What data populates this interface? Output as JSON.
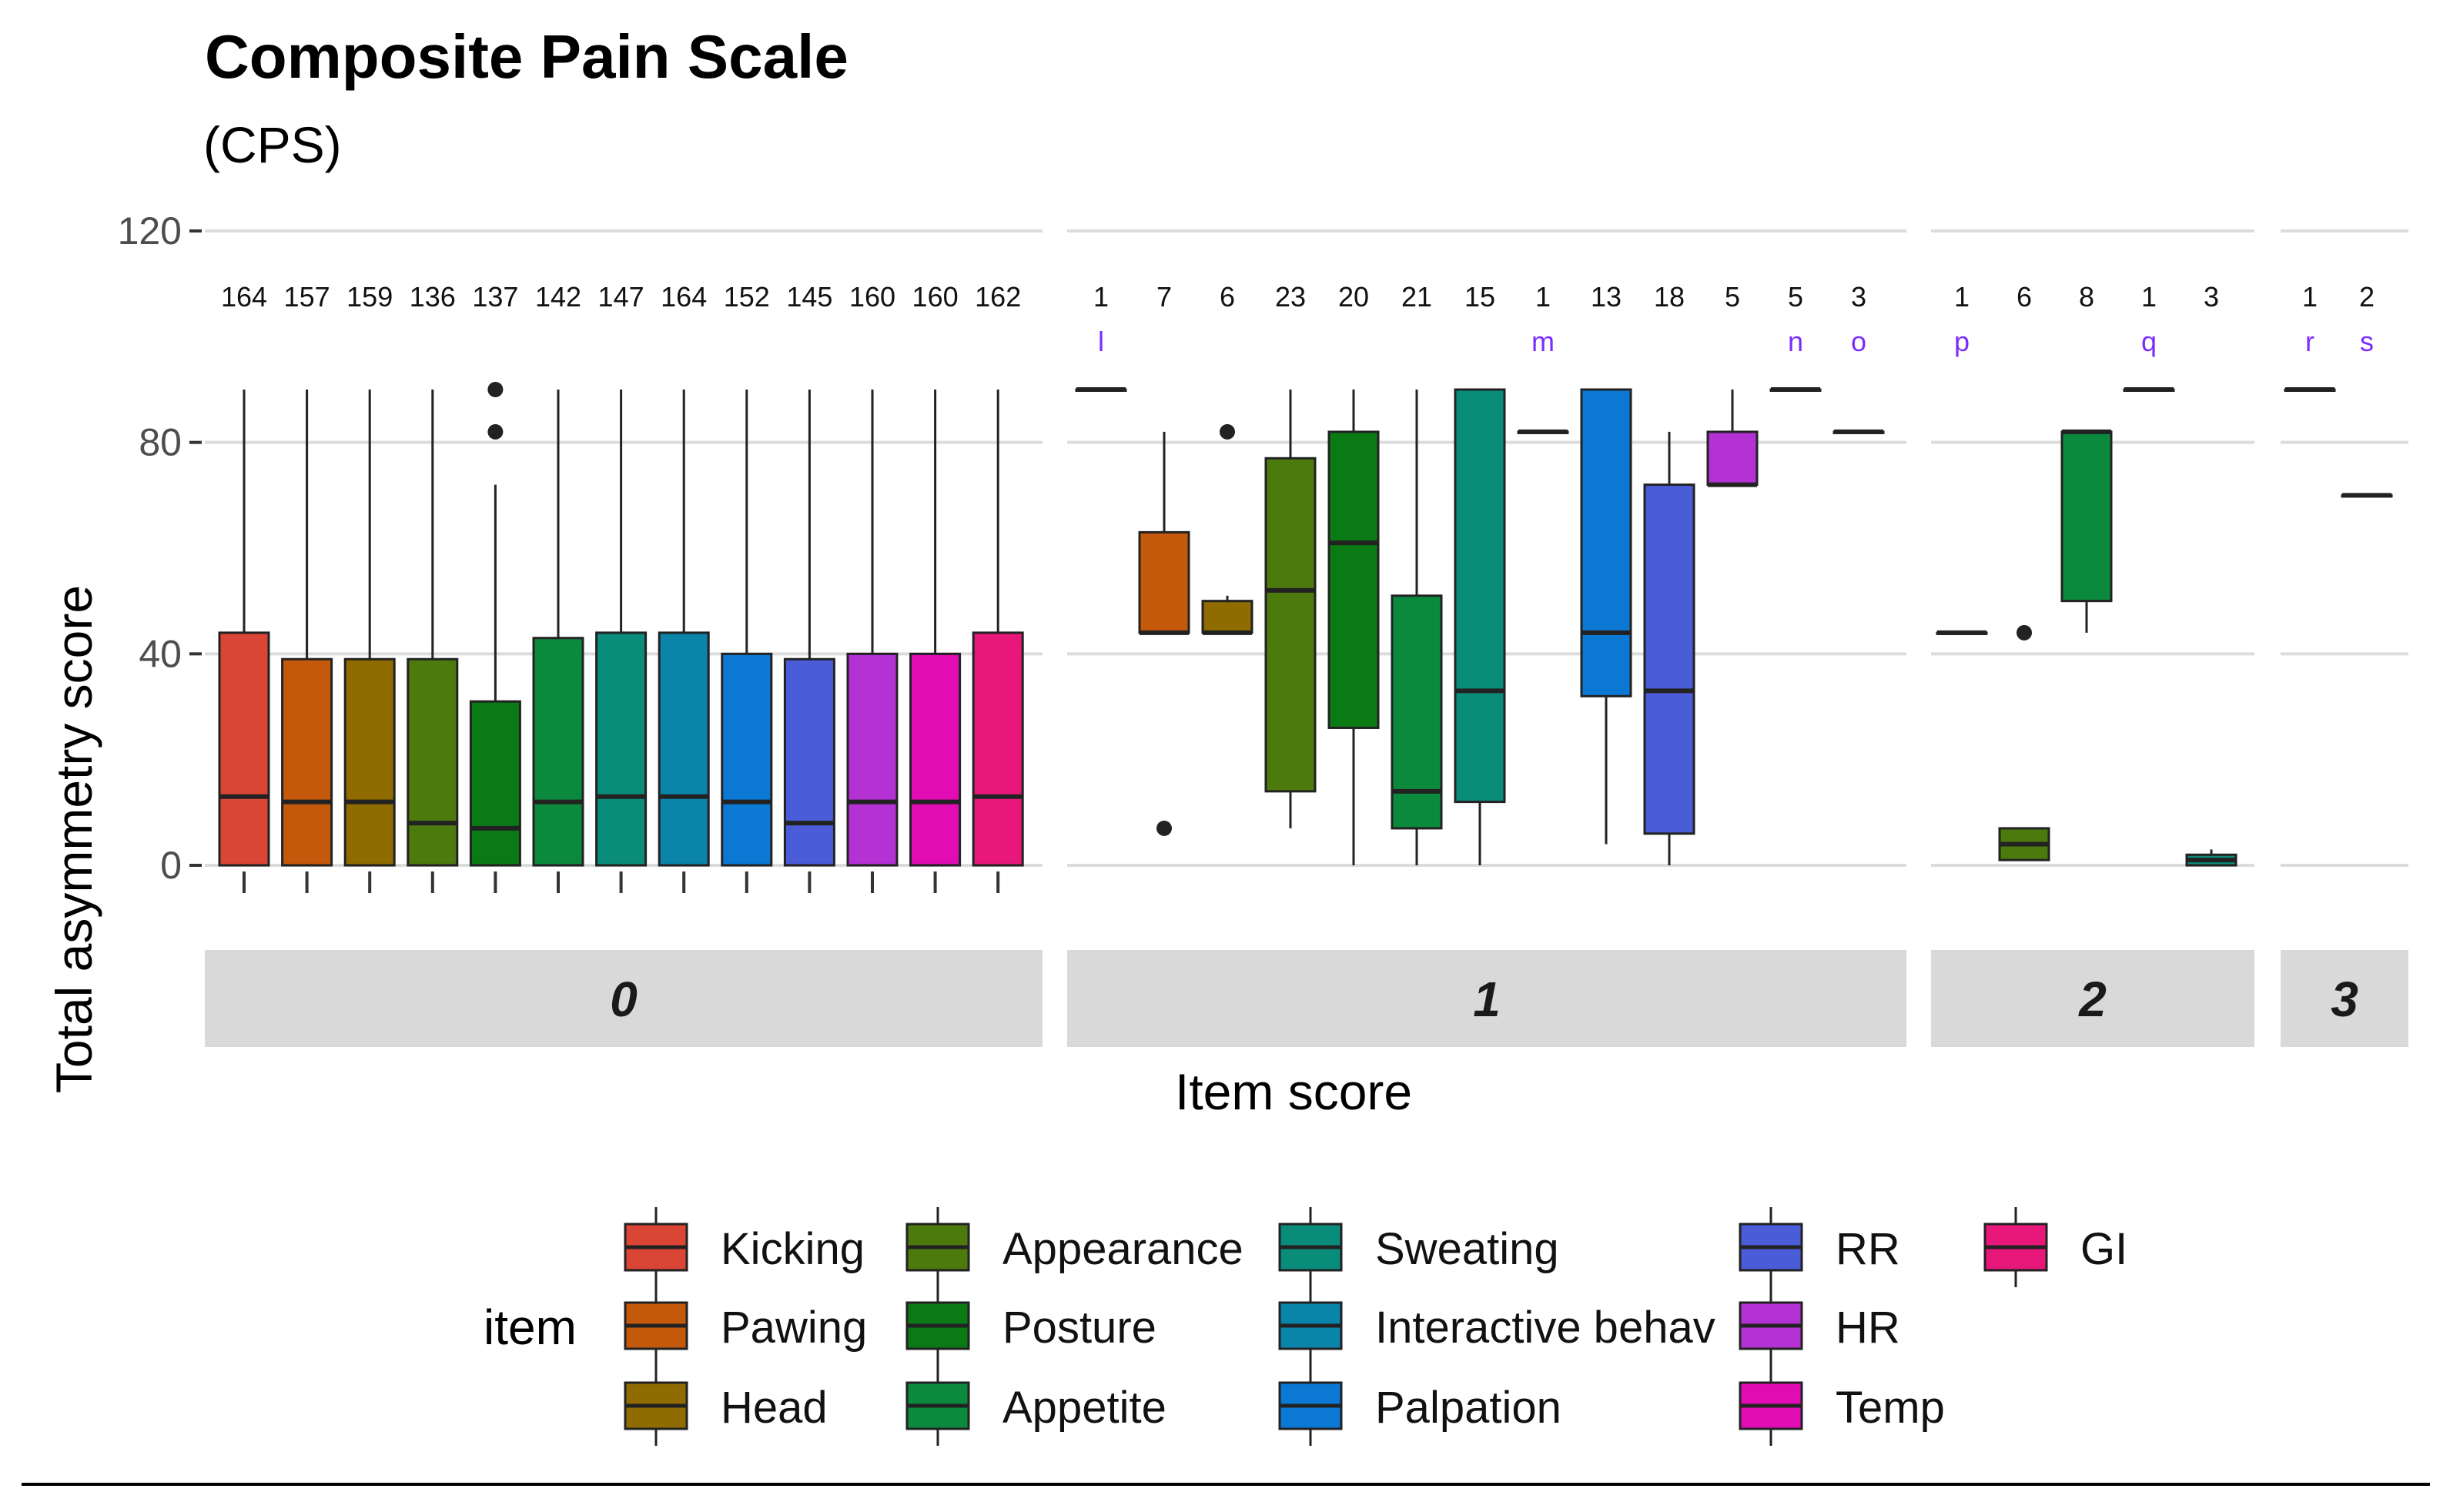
{
  "chart_data": {
    "type": "box",
    "title": "Composite Pain Scale",
    "subtitle": "(CPS)",
    "xlabel": "Item score",
    "ylabel": "Total asymmetry score",
    "ylim": [
      0,
      120
    ],
    "y_ticks": [
      "0",
      "40",
      "80",
      "120"
    ],
    "grid": true,
    "legend": {
      "title": "item",
      "position": "bottom"
    },
    "items": [
      {
        "name": "Kicking",
        "color": "#DB4535"
      },
      {
        "name": "Pawing",
        "color": "#C4590B"
      },
      {
        "name": "Head",
        "color": "#8F6B00"
      },
      {
        "name": "Appearance",
        "color": "#4C7A0C"
      },
      {
        "name": "Posture",
        "color": "#0A7A14"
      },
      {
        "name": "Appetite",
        "color": "#0B8A3D"
      },
      {
        "name": "Sweating",
        "color": "#0A8C7A"
      },
      {
        "name": "Interactive behav",
        "color": "#0A84A8"
      },
      {
        "name": "Palpation",
        "color": "#0B78D4"
      },
      {
        "name": "RR",
        "color": "#4B5CD8"
      },
      {
        "name": "HR",
        "color": "#B431D4"
      },
      {
        "name": "Temp",
        "color": "#E20CB5"
      },
      {
        "name": "GI",
        "color": "#E8177A"
      }
    ],
    "panels": [
      {
        "label": "0",
        "boxes": [
          {
            "item": "Kicking",
            "n": "164",
            "min": 0,
            "q1": 0,
            "median": 13,
            "q3": 44,
            "max": 90,
            "outliers": []
          },
          {
            "item": "Pawing",
            "n": "157",
            "min": 0,
            "q1": 0,
            "median": 12,
            "q3": 39,
            "max": 90,
            "outliers": []
          },
          {
            "item": "Head",
            "n": "159",
            "min": 0,
            "q1": 0,
            "median": 12,
            "q3": 39,
            "max": 90,
            "outliers": []
          },
          {
            "item": "Appearance",
            "n": "136",
            "min": 0,
            "q1": 0,
            "median": 8,
            "q3": 39,
            "max": 90,
            "outliers": []
          },
          {
            "item": "Posture",
            "n": "137",
            "min": 0,
            "q1": 0,
            "median": 7,
            "q3": 31,
            "max": 72,
            "outliers": [
              82,
              90
            ]
          },
          {
            "item": "Appetite",
            "n": "142",
            "min": 0,
            "q1": 0,
            "median": 12,
            "q3": 43,
            "max": 90,
            "outliers": []
          },
          {
            "item": "Sweating",
            "n": "147",
            "min": 0,
            "q1": 0,
            "median": 13,
            "q3": 44,
            "max": 90,
            "outliers": []
          },
          {
            "item": "Interactive behav",
            "n": "164",
            "min": 0,
            "q1": 0,
            "median": 13,
            "q3": 44,
            "max": 90,
            "outliers": []
          },
          {
            "item": "Palpation",
            "n": "152",
            "min": 0,
            "q1": 0,
            "median": 12,
            "q3": 40,
            "max": 90,
            "outliers": []
          },
          {
            "item": "RR",
            "n": "145",
            "min": 0,
            "q1": 0,
            "median": 8,
            "q3": 39,
            "max": 90,
            "outliers": []
          },
          {
            "item": "HR",
            "n": "160",
            "min": 0,
            "q1": 0,
            "median": 12,
            "q3": 40,
            "max": 90,
            "outliers": []
          },
          {
            "item": "Temp",
            "n": "160",
            "min": 0,
            "q1": 0,
            "median": 12,
            "q3": 40,
            "max": 90,
            "outliers": []
          },
          {
            "item": "GI",
            "n": "162",
            "min": 0,
            "q1": 0,
            "median": 13,
            "q3": 44,
            "max": 90,
            "outliers": []
          }
        ]
      },
      {
        "label": "1",
        "boxes": [
          {
            "item": "Kicking",
            "n": "1",
            "letter": "l",
            "min": 90,
            "q1": 90,
            "median": 90,
            "q3": 90,
            "max": 90,
            "outliers": []
          },
          {
            "item": "Pawing",
            "n": "7",
            "min": 44,
            "q1": 44,
            "median": 44,
            "q3": 63,
            "max": 82,
            "outliers": [
              7
            ]
          },
          {
            "item": "Head",
            "n": "6",
            "min": 44,
            "q1": 44,
            "median": 44,
            "q3": 50,
            "max": 51,
            "outliers": [
              82
            ]
          },
          {
            "item": "Appearance",
            "n": "23",
            "min": 7,
            "q1": 14,
            "median": 52,
            "q3": 77,
            "max": 90,
            "outliers": []
          },
          {
            "item": "Posture",
            "n": "20",
            "min": 0,
            "q1": 26,
            "median": 61,
            "q3": 82,
            "max": 90,
            "outliers": []
          },
          {
            "item": "Appetite",
            "n": "21",
            "min": 0,
            "q1": 7,
            "median": 14,
            "q3": 51,
            "max": 90,
            "outliers": []
          },
          {
            "item": "Sweating",
            "n": "15",
            "min": 0,
            "q1": 12,
            "median": 33,
            "q3": 90,
            "max": 90,
            "outliers": []
          },
          {
            "item": "Interactive behav",
            "n": "1",
            "letter": "m",
            "min": 82,
            "q1": 82,
            "median": 82,
            "q3": 82,
            "max": 82,
            "outliers": []
          },
          {
            "item": "Palpation",
            "n": "13",
            "min": 4,
            "q1": 32,
            "median": 44,
            "q3": 90,
            "max": 90,
            "outliers": []
          },
          {
            "item": "RR",
            "n": "18",
            "min": 0,
            "q1": 6,
            "median": 33,
            "q3": 72,
            "max": 82,
            "outliers": []
          },
          {
            "item": "HR",
            "n": "5",
            "min": 72,
            "q1": 72,
            "median": 72,
            "q3": 82,
            "max": 90,
            "outliers": []
          },
          {
            "item": "Temp",
            "n": "5",
            "letter": "n",
            "min": 90,
            "q1": 90,
            "median": 90,
            "q3": 90,
            "max": 90,
            "outliers": []
          },
          {
            "item": "GI",
            "n": "3",
            "letter": "o",
            "min": 82,
            "q1": 82,
            "median": 82,
            "q3": 82,
            "max": 82,
            "outliers": []
          }
        ]
      },
      {
        "label": "2",
        "boxes": [
          {
            "item": "Kicking",
            "n": "1",
            "letter": "p",
            "min": 44,
            "q1": 44,
            "median": 44,
            "q3": 44,
            "max": 44,
            "outliers": []
          },
          {
            "item": "Appearance",
            "n": "6",
            "min": 1,
            "q1": 1,
            "median": 4,
            "q3": 7,
            "max": 7,
            "outliers": [
              44
            ]
          },
          {
            "item": "Appetite",
            "n": "8",
            "min": 44,
            "q1": 50,
            "median": 82,
            "q3": 82,
            "max": 82,
            "outliers": []
          },
          {
            "item": "Palpation",
            "n": "1",
            "letter": "q",
            "min": 90,
            "q1": 90,
            "median": 90,
            "q3": 90,
            "max": 90,
            "outliers": []
          },
          {
            "item": "Sweating",
            "n": "3",
            "min": 0,
            "q1": 0,
            "median": 1,
            "q3": 2,
            "max": 3,
            "outliers": []
          }
        ]
      },
      {
        "label": "3",
        "boxes": [
          {
            "item": "Kicking",
            "n": "1",
            "letter": "r",
            "min": 90,
            "q1": 90,
            "median": 90,
            "q3": 90,
            "max": 90,
            "outliers": []
          },
          {
            "item": "Sweating",
            "n": "2",
            "letter": "s",
            "min": 70,
            "q1": 70,
            "median": 70,
            "q3": 70,
            "max": 70,
            "outliers": []
          }
        ]
      }
    ]
  }
}
